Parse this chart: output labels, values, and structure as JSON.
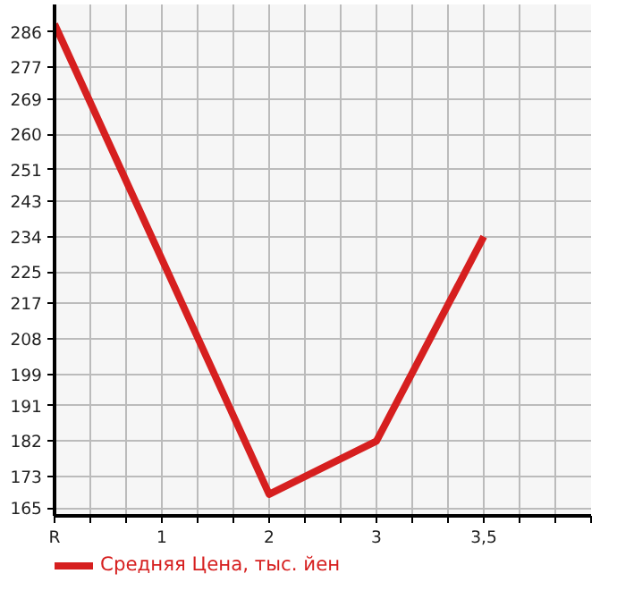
{
  "chart_data": {
    "type": "line",
    "categories": [
      "R",
      "1",
      "2",
      "3",
      "3,5"
    ],
    "series": [
      {
        "name": "Средняя Цена, тыс. йен",
        "color": "#d61f1f",
        "values": [
          288,
          null,
          168.5,
          182,
          234
        ]
      }
    ],
    "ylim": [
      163,
      293
    ],
    "yticks": [
      165,
      173,
      182,
      191,
      199,
      208,
      217,
      225,
      234,
      243,
      251,
      260,
      269,
      277,
      286
    ],
    "grid": true,
    "legend": "bottom",
    "marker": "none",
    "line_style": "solid"
  }
}
